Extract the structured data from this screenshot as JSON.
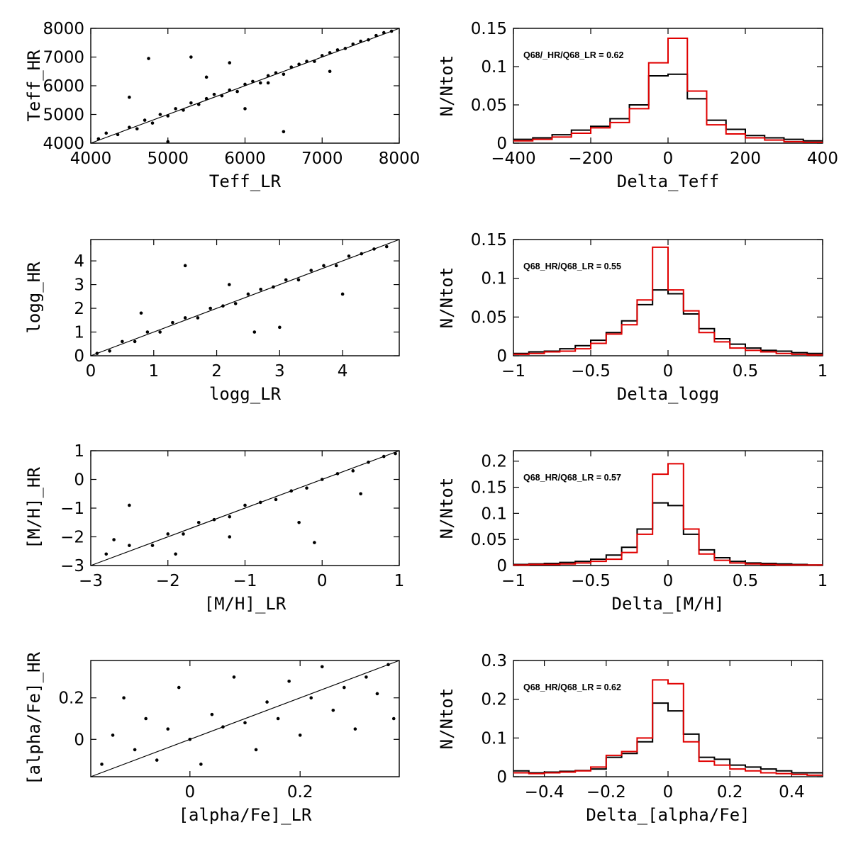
{
  "chart_data": [
    {
      "id": "teff-scatter",
      "type": "scatter",
      "xlabel": "Teff_LR",
      "ylabel": "Teff_HR",
      "xlim": [
        4000,
        8000
      ],
      "ylim": [
        4000,
        8000
      ],
      "xticks": [
        4000,
        5000,
        6000,
        7000,
        8000
      ],
      "yticks": [
        4000,
        5000,
        6000,
        7000,
        8000
      ],
      "xtick_labels": [
        "4000",
        "5000",
        "6000",
        "7000",
        "8000"
      ],
      "ytick_labels": [
        "4000",
        "5000",
        "6000",
        "7000",
        "8000"
      ],
      "one_to_one_line": true,
      "points": [
        [
          4100,
          4150
        ],
        [
          4200,
          4350
        ],
        [
          4350,
          4300
        ],
        [
          4500,
          4550
        ],
        [
          4600,
          4500
        ],
        [
          4700,
          4800
        ],
        [
          4800,
          4700
        ],
        [
          4900,
          5000
        ],
        [
          5000,
          4950
        ],
        [
          5100,
          5200
        ],
        [
          5200,
          5150
        ],
        [
          5300,
          5400
        ],
        [
          5400,
          5350
        ],
        [
          5500,
          5550
        ],
        [
          5600,
          5700
        ],
        [
          5700,
          5650
        ],
        [
          5800,
          5850
        ],
        [
          5900,
          5800
        ],
        [
          6000,
          6050
        ],
        [
          6100,
          6150
        ],
        [
          6200,
          6100
        ],
        [
          6300,
          6350
        ],
        [
          6400,
          6450
        ],
        [
          6500,
          6400
        ],
        [
          6600,
          6650
        ],
        [
          6700,
          6750
        ],
        [
          6800,
          6850
        ],
        [
          6900,
          6850
        ],
        [
          7000,
          7050
        ],
        [
          7100,
          7150
        ],
        [
          7200,
          7250
        ],
        [
          7300,
          7300
        ],
        [
          7400,
          7450
        ],
        [
          7500,
          7550
        ],
        [
          7600,
          7600
        ],
        [
          7700,
          7750
        ],
        [
          7800,
          7850
        ],
        [
          7900,
          7900
        ],
        [
          4750,
          6950
        ],
        [
          5300,
          7000
        ],
        [
          5500,
          6300
        ],
        [
          6300,
          6100
        ],
        [
          6500,
          4400
        ],
        [
          4500,
          5600
        ],
        [
          5000,
          4050
        ],
        [
          7100,
          6500
        ],
        [
          6000,
          5200
        ],
        [
          5800,
          6800
        ]
      ]
    },
    {
      "id": "teff-hist",
      "type": "histogram",
      "xlabel": "Delta_Teff",
      "ylabel": "N/Ntot",
      "xlim": [
        -400,
        400
      ],
      "ylim": [
        0,
        0.15
      ],
      "xticks": [
        -400,
        -200,
        0,
        200,
        400
      ],
      "yticks": [
        0,
        0.05,
        0.1,
        0.15
      ],
      "xtick_labels": [
        "−400",
        "−200",
        "0",
        "200",
        "400"
      ],
      "ytick_labels": [
        "0",
        "0.05",
        "0.1",
        "0.15"
      ],
      "bin_edges": [
        -400,
        -350,
        -300,
        -250,
        -200,
        -150,
        -100,
        -50,
        0,
        50,
        100,
        150,
        200,
        250,
        300,
        350,
        400
      ],
      "series": [
        {
          "name": "black",
          "color": "#000000",
          "values": [
            0.005,
            0.007,
            0.011,
            0.017,
            0.022,
            0.032,
            0.05,
            0.088,
            0.09,
            0.058,
            0.03,
            0.018,
            0.01,
            0.007,
            0.005,
            0.003
          ]
        },
        {
          "name": "red",
          "color": "#e00000",
          "values": [
            0.003,
            0.005,
            0.008,
            0.013,
            0.02,
            0.027,
            0.045,
            0.105,
            0.137,
            0.068,
            0.024,
            0.012,
            0.007,
            0.004,
            0.002,
            0.001
          ]
        }
      ],
      "annotation": "Q68/_HR/Q68_LR = 0.62"
    },
    {
      "id": "logg-scatter",
      "type": "scatter",
      "xlabel": "logg_LR",
      "ylabel": "logg_HR",
      "xlim": [
        0,
        4.9
      ],
      "ylim": [
        0,
        4.9
      ],
      "xticks": [
        0,
        1,
        2,
        3,
        4
      ],
      "yticks": [
        0,
        1,
        2,
        3,
        4
      ],
      "xtick_labels": [
        "0",
        "1",
        "2",
        "3",
        "4"
      ],
      "ytick_labels": [
        "0",
        "1",
        "2",
        "3",
        "4"
      ],
      "one_to_one_line": true,
      "points": [
        [
          0.1,
          0.1
        ],
        [
          0.3,
          0.2
        ],
        [
          0.5,
          0.6
        ],
        [
          0.7,
          0.6
        ],
        [
          0.9,
          1.0
        ],
        [
          1.1,
          1.0
        ],
        [
          1.3,
          1.4
        ],
        [
          1.5,
          1.6
        ],
        [
          1.7,
          1.6
        ],
        [
          1.9,
          2.0
        ],
        [
          2.1,
          2.1
        ],
        [
          2.3,
          2.2
        ],
        [
          2.5,
          2.6
        ],
        [
          2.7,
          2.8
        ],
        [
          2.9,
          2.9
        ],
        [
          3.1,
          3.2
        ],
        [
          3.3,
          3.2
        ],
        [
          3.5,
          3.6
        ],
        [
          3.7,
          3.8
        ],
        [
          3.9,
          3.8
        ],
        [
          4.1,
          4.2
        ],
        [
          4.3,
          4.3
        ],
        [
          4.5,
          4.5
        ],
        [
          4.7,
          4.6
        ],
        [
          1.5,
          3.8
        ],
        [
          0.8,
          1.8
        ],
        [
          2.6,
          1.0
        ],
        [
          3.0,
          1.2
        ],
        [
          4.0,
          2.6
        ],
        [
          2.2,
          3.0
        ]
      ]
    },
    {
      "id": "logg-hist",
      "type": "histogram",
      "xlabel": "Delta_logg",
      "ylabel": "N/Ntot",
      "xlim": [
        -1,
        1
      ],
      "ylim": [
        0,
        0.15
      ],
      "xticks": [
        -1,
        -0.5,
        0,
        0.5,
        1
      ],
      "yticks": [
        0,
        0.05,
        0.1,
        0.15
      ],
      "xtick_labels": [
        "−1",
        "−0.5",
        "0",
        "0.5",
        "1"
      ],
      "ytick_labels": [
        "0",
        "0.05",
        "0.1",
        "0.15"
      ],
      "bin_edges": [
        -1,
        -0.9,
        -0.8,
        -0.7,
        -0.6,
        -0.5,
        -0.4,
        -0.3,
        -0.2,
        -0.1,
        0,
        0.1,
        0.2,
        0.3,
        0.4,
        0.5,
        0.6,
        0.7,
        0.8,
        0.9,
        1.0
      ],
      "series": [
        {
          "name": "black",
          "color": "#000000",
          "values": [
            0.003,
            0.005,
            0.006,
            0.009,
            0.013,
            0.02,
            0.03,
            0.045,
            0.066,
            0.085,
            0.08,
            0.054,
            0.035,
            0.022,
            0.015,
            0.01,
            0.007,
            0.006,
            0.004,
            0.003
          ]
        },
        {
          "name": "red",
          "color": "#e00000",
          "values": [
            0.002,
            0.003,
            0.005,
            0.006,
            0.009,
            0.016,
            0.028,
            0.04,
            0.072,
            0.14,
            0.085,
            0.058,
            0.03,
            0.018,
            0.01,
            0.007,
            0.005,
            0.003,
            0.002,
            0.001
          ]
        }
      ],
      "annotation": "Q68_HR/Q68_LR = 0.55"
    },
    {
      "id": "mh-scatter",
      "type": "scatter",
      "xlabel": "[M/H]_LR",
      "ylabel": "[M/H]_HR",
      "xlim": [
        -3,
        1
      ],
      "ylim": [
        -3,
        1
      ],
      "xticks": [
        -3,
        -2,
        -1,
        0,
        1
      ],
      "yticks": [
        -3,
        -2,
        -1,
        0,
        1
      ],
      "xtick_labels": [
        "−3",
        "−2",
        "−1",
        "0",
        "1"
      ],
      "ytick_labels": [
        "−3",
        "−2",
        "−1",
        "0",
        "1"
      ],
      "one_to_one_line": true,
      "points": [
        [
          -2.8,
          -2.6
        ],
        [
          -2.5,
          -2.3
        ],
        [
          -2.2,
          -2.3
        ],
        [
          -2.0,
          -1.9
        ],
        [
          -1.8,
          -1.9
        ],
        [
          -1.6,
          -1.5
        ],
        [
          -1.4,
          -1.4
        ],
        [
          -1.2,
          -1.3
        ],
        [
          -1.0,
          -0.9
        ],
        [
          -0.8,
          -0.8
        ],
        [
          -0.6,
          -0.7
        ],
        [
          -0.4,
          -0.4
        ],
        [
          -0.2,
          -0.3
        ],
        [
          0.0,
          0.0
        ],
        [
          0.2,
          0.2
        ],
        [
          0.4,
          0.3
        ],
        [
          0.6,
          0.6
        ],
        [
          0.8,
          0.8
        ],
        [
          0.95,
          0.9
        ],
        [
          -2.5,
          -0.9
        ],
        [
          -2.7,
          -2.1
        ],
        [
          -1.9,
          -2.6
        ],
        [
          -0.3,
          -1.5
        ],
        [
          -0.1,
          -2.2
        ],
        [
          -1.2,
          -2.0
        ],
        [
          0.5,
          -0.5
        ]
      ]
    },
    {
      "id": "mh-hist",
      "type": "histogram",
      "xlabel": "Delta_[M/H]",
      "ylabel": "N/Ntot",
      "xlim": [
        -1,
        1
      ],
      "ylim": [
        0,
        0.22
      ],
      "xticks": [
        -1,
        -0.5,
        0,
        0.5,
        1
      ],
      "yticks": [
        0,
        0.05,
        0.1,
        0.15,
        0.2
      ],
      "xtick_labels": [
        "−1",
        "−0.5",
        "0",
        "0.5",
        "1"
      ],
      "ytick_labels": [
        "0",
        "0.05",
        "0.1",
        "0.15",
        "0.2"
      ],
      "bin_edges": [
        -1,
        -0.9,
        -0.8,
        -0.7,
        -0.6,
        -0.5,
        -0.4,
        -0.3,
        -0.2,
        -0.1,
        0,
        0.1,
        0.2,
        0.3,
        0.4,
        0.5,
        0.6,
        0.7,
        0.8,
        0.9,
        1.0
      ],
      "series": [
        {
          "name": "black",
          "color": "#000000",
          "values": [
            0.002,
            0.003,
            0.004,
            0.006,
            0.008,
            0.012,
            0.02,
            0.035,
            0.07,
            0.12,
            0.115,
            0.06,
            0.03,
            0.015,
            0.008,
            0.005,
            0.004,
            0.003,
            0.002,
            0.001
          ]
        },
        {
          "name": "red",
          "color": "#e00000",
          "values": [
            0.001,
            0.002,
            0.002,
            0.003,
            0.005,
            0.008,
            0.012,
            0.025,
            0.06,
            0.175,
            0.195,
            0.07,
            0.022,
            0.01,
            0.005,
            0.003,
            0.002,
            0.001,
            0.001,
            0.001
          ]
        }
      ],
      "annotation": "Q68_HR/Q68_LR = 0.57"
    },
    {
      "id": "alpha-scatter",
      "type": "scatter",
      "xlabel": "[alpha/Fe]_LR",
      "ylabel": "[alpha/Fe]_HR",
      "xlim": [
        -0.18,
        0.38
      ],
      "ylim": [
        -0.18,
        0.38
      ],
      "xticks": [
        0,
        0.2
      ],
      "yticks": [
        0,
        0.2
      ],
      "xtick_labels": [
        "0",
        "0.2"
      ],
      "ytick_labels": [
        "0",
        "0.2"
      ],
      "one_to_one_line": true,
      "points": [
        [
          -0.16,
          -0.12
        ],
        [
          -0.14,
          0.02
        ],
        [
          -0.12,
          0.2
        ],
        [
          -0.1,
          -0.05
        ],
        [
          -0.08,
          0.1
        ],
        [
          -0.06,
          -0.1
        ],
        [
          -0.04,
          0.05
        ],
        [
          -0.02,
          0.25
        ],
        [
          0.0,
          0.0
        ],
        [
          0.02,
          -0.12
        ],
        [
          0.04,
          0.12
        ],
        [
          0.06,
          0.06
        ],
        [
          0.08,
          0.3
        ],
        [
          0.1,
          0.08
        ],
        [
          0.12,
          -0.05
        ],
        [
          0.14,
          0.18
        ],
        [
          0.16,
          0.1
        ],
        [
          0.18,
          0.28
        ],
        [
          0.2,
          0.02
        ],
        [
          0.22,
          0.2
        ],
        [
          0.24,
          0.35
        ],
        [
          0.26,
          0.14
        ],
        [
          0.28,
          0.25
        ],
        [
          0.3,
          0.05
        ],
        [
          0.32,
          0.3
        ],
        [
          0.34,
          0.22
        ],
        [
          0.36,
          0.36
        ],
        [
          0.37,
          0.1
        ]
      ]
    },
    {
      "id": "alpha-hist",
      "type": "histogram",
      "xlabel": "Delta_[alpha/Fe]",
      "ylabel": "N/Ntot",
      "xlim": [
        -0.5,
        0.5
      ],
      "ylim": [
        0,
        0.3
      ],
      "xticks": [
        -0.4,
        -0.2,
        0,
        0.2,
        0.4
      ],
      "yticks": [
        0,
        0.1,
        0.2,
        0.3
      ],
      "xtick_labels": [
        "−0.4",
        "−0.2",
        "0",
        "0.2",
        "0.4"
      ],
      "ytick_labels": [
        "0",
        "0.1",
        "0.2",
        "0.3"
      ],
      "bin_edges": [
        -0.5,
        -0.45,
        -0.4,
        -0.35,
        -0.3,
        -0.25,
        -0.2,
        -0.15,
        -0.1,
        -0.05,
        0,
        0.05,
        0.1,
        0.15,
        0.2,
        0.25,
        0.3,
        0.35,
        0.4,
        0.45,
        0.5
      ],
      "series": [
        {
          "name": "black",
          "color": "#000000",
          "values": [
            0.015,
            0.01,
            0.012,
            0.014,
            0.016,
            0.02,
            0.05,
            0.06,
            0.09,
            0.19,
            0.17,
            0.11,
            0.05,
            0.045,
            0.03,
            0.025,
            0.02,
            0.015,
            0.01,
            0.01
          ]
        },
        {
          "name": "red",
          "color": "#e00000",
          "values": [
            0.01,
            0.008,
            0.01,
            0.012,
            0.015,
            0.025,
            0.055,
            0.065,
            0.1,
            0.25,
            0.24,
            0.09,
            0.04,
            0.03,
            0.02,
            0.015,
            0.01,
            0.008,
            0.006,
            0.004
          ]
        }
      ],
      "annotation": "Q68_HR/Q68_LR = 0.62"
    }
  ]
}
